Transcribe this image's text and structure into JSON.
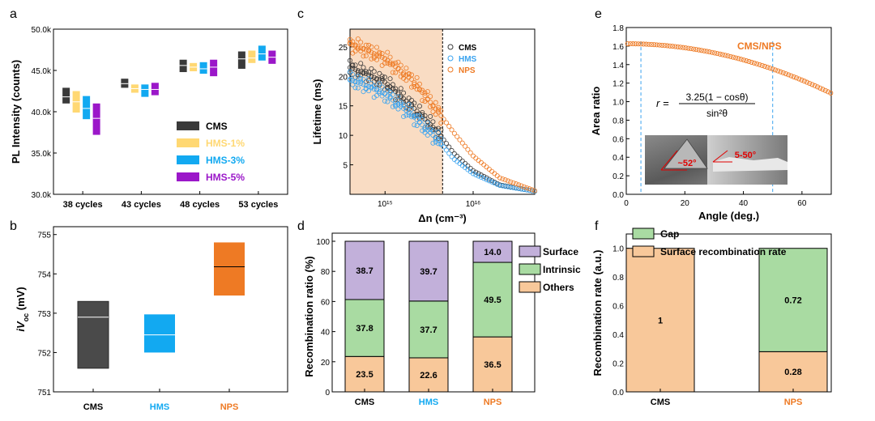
{
  "colors": {
    "cms": "#3a3a3a",
    "hms1": "#ffd873",
    "hms3": "#12a9f1",
    "hms5": "#9b17c9",
    "nps": "#ee7a24",
    "green": "#a9dba2",
    "purple": "#c2b0da",
    "peach": "#f8c89a",
    "shade": "#f9dcc3",
    "dash_blue": "#3aa3ef"
  },
  "chart_data": [
    {
      "panel": "a",
      "type": "box",
      "ylabel": "PL Intensity (counts)",
      "ylim": [
        30000,
        50000
      ],
      "yticks": [
        "30.0k",
        "35.0k",
        "40.0k",
        "45.0k",
        "50.0k"
      ],
      "yticks_values": [
        30000,
        35000,
        40000,
        45000,
        50000
      ],
      "categories": [
        "38 cycles",
        "43 cycles",
        "48 cycles",
        "53 cycles"
      ],
      "legend": [
        "CMS",
        "HMS-1%",
        "HMS-3%",
        "HMS-5%"
      ],
      "series": [
        {
          "name": "CMS",
          "boxes": [
            [
              41000,
              41800,
              42900
            ],
            [
              42900,
              43400,
              44000
            ],
            [
              44800,
              45600,
              46300
            ],
            [
              45200,
              46400,
              47300
            ]
          ]
        },
        {
          "name": "HMS-1%",
          "boxes": [
            [
              39900,
              41200,
              42500
            ],
            [
              42300,
              42800,
              43300
            ],
            [
              44900,
              45400,
              45900
            ],
            [
              45900,
              46500,
              47400
            ]
          ]
        },
        {
          "name": "HMS-3%",
          "boxes": [
            [
              39100,
              40400,
              41900
            ],
            [
              41800,
              42700,
              43300
            ],
            [
              44600,
              45200,
              46000
            ],
            [
              46200,
              47000,
              48000
            ]
          ]
        },
        {
          "name": "HMS-5%",
          "boxes": [
            [
              37200,
              39200,
              41000
            ],
            [
              42000,
              42700,
              43500
            ],
            [
              44300,
              45400,
              46300
            ],
            [
              45800,
              46600,
              47400
            ]
          ]
        }
      ]
    },
    {
      "panel": "b",
      "type": "box",
      "ylabel_main": "iV",
      "ylabel_sub": "oc",
      "ylabel_unit": " (mV)",
      "ylim": [
        751,
        755.2
      ],
      "yticks": [
        "751",
        "752",
        "753",
        "754",
        "755"
      ],
      "yticks_values": [
        751,
        752,
        753,
        754,
        755
      ],
      "categories": [
        "CMS",
        "HMS",
        "NPS"
      ],
      "boxes": [
        [
          751.6,
          752.9,
          753.3
        ],
        [
          752.0,
          752.45,
          752.97
        ],
        [
          753.45,
          754.18,
          754.8
        ]
      ]
    },
    {
      "panel": "c",
      "type": "scatter",
      "xlabel": "Δn (cm⁻³)",
      "ylabel": "Lifetime (ms)",
      "xscale": "log",
      "xlim": [
        400000000000000.0,
        5e+16
      ],
      "ylim": [
        0,
        28
      ],
      "yticks": [
        "5",
        "10",
        "15",
        "20",
        "25"
      ],
      "yticks_values": [
        5,
        10,
        15,
        20,
        25
      ],
      "xtick_labels": [
        "10¹⁵",
        "10¹⁶"
      ],
      "xtick_values": [
        1000000000000000.0,
        1e+16
      ],
      "shaded_region": [
        400000000000000.0,
        4500000000000000.0
      ],
      "dashed_line_x": 4500000000000000.0,
      "legend": [
        "CMS",
        "HMS",
        "NPS"
      ],
      "series": [
        {
          "name": "CMS",
          "x": [
            400000000000000.0,
            600000000000000.0,
            1000000000000000.0,
            2000000000000000.0,
            4000000000000000.0,
            6000000000000000.0,
            1e+16,
            2e+16,
            5e+16
          ],
          "y": [
            21.5,
            20.5,
            19.0,
            15.0,
            10.5,
            7.0,
            4.0,
            1.6,
            0.5
          ]
        },
        {
          "name": "HMS",
          "x": [
            400000000000000.0,
            600000000000000.0,
            1000000000000000.0,
            2000000000000000.0,
            4000000000000000.0,
            6000000000000000.0,
            1e+16,
            2e+16,
            5e+16
          ],
          "y": [
            19.5,
            18.5,
            17.0,
            13.5,
            9.2,
            6.0,
            3.5,
            1.5,
            0.5
          ]
        },
        {
          "name": "NPS",
          "x": [
            400000000000000.0,
            600000000000000.0,
            1000000000000000.0,
            2000000000000000.0,
            4000000000000000.0,
            6000000000000000.0,
            1e+16,
            2e+16,
            5e+16
          ],
          "y": [
            25.5,
            24.5,
            23.0,
            19.5,
            14.0,
            10.5,
            6.5,
            2.8,
            0.6
          ]
        }
      ]
    },
    {
      "panel": "d",
      "type": "stacked_bar",
      "ylabel": "Recombination ratio (%)",
      "ylim": [
        0,
        100
      ],
      "yticks": [
        "0",
        "20",
        "40",
        "60",
        "80",
        "100"
      ],
      "yticks_values": [
        0,
        20,
        40,
        60,
        80,
        100
      ],
      "categories": [
        "CMS",
        "HMS",
        "NPS"
      ],
      "series": [
        {
          "name": "Others",
          "values": [
            23.5,
            22.6,
            36.5
          ],
          "labels": [
            "23.5",
            "22.6",
            "36.5"
          ]
        },
        {
          "name": "Intrinsic",
          "values": [
            37.8,
            37.7,
            49.5
          ],
          "labels": [
            "37.8",
            "37.7",
            "49.5"
          ]
        },
        {
          "name": "Surface",
          "values": [
            38.7,
            39.7,
            14.0
          ],
          "labels": [
            "38.7",
            "39.7",
            "14.0"
          ]
        }
      ],
      "legend": [
        "Surface",
        "Intrinsic",
        "Others"
      ]
    },
    {
      "panel": "e",
      "type": "scatter",
      "xlabel": "Angle (deg.)",
      "ylabel": "Area ratio",
      "xlim": [
        0,
        70
      ],
      "ylim": [
        0,
        1.8
      ],
      "xticks": [
        "0",
        "20",
        "40",
        "60"
      ],
      "xticks_values": [
        0,
        20,
        40,
        60
      ],
      "yticks": [
        "0.0",
        "0.2",
        "0.4",
        "0.6",
        "0.8",
        "1.0",
        "1.2",
        "1.4",
        "1.6",
        "1.8"
      ],
      "yticks_values": [
        0,
        0.2,
        0.4,
        0.6,
        0.8,
        1.0,
        1.2,
        1.4,
        1.6,
        1.8
      ],
      "series_label": "CMS/NPS",
      "formula_model": "r = 3.25*(1 - cos(theta))/sin(theta)^2",
      "formula_lhs": "r =",
      "formula_num": "3.25(1 − cosθ)",
      "formula_den": "sin²θ",
      "dashed_lines_x": [
        5,
        50
      ],
      "inset_label_1": "~52°",
      "inset_label_2": "5-50°"
    },
    {
      "panel": "f",
      "type": "stacked_bar",
      "ylabel": "Recombination rate (a.u.)",
      "ylim": [
        0,
        1.1
      ],
      "yticks": [
        "0.0",
        "0.2",
        "0.4",
        "0.6",
        "0.8",
        "1.0"
      ],
      "yticks_values": [
        0,
        0.2,
        0.4,
        0.6,
        0.8,
        1.0
      ],
      "categories": [
        "CMS",
        "NPS"
      ],
      "series": [
        {
          "name": "Surface recombination rate",
          "values": [
            1.0,
            0.28
          ],
          "labels": [
            "1",
            "0.28"
          ]
        },
        {
          "name": "Gap",
          "values": [
            0,
            0.72
          ],
          "labels": [
            "",
            "0.72"
          ]
        }
      ],
      "legend": [
        "Gap",
        "Surface recombination rate"
      ]
    }
  ]
}
